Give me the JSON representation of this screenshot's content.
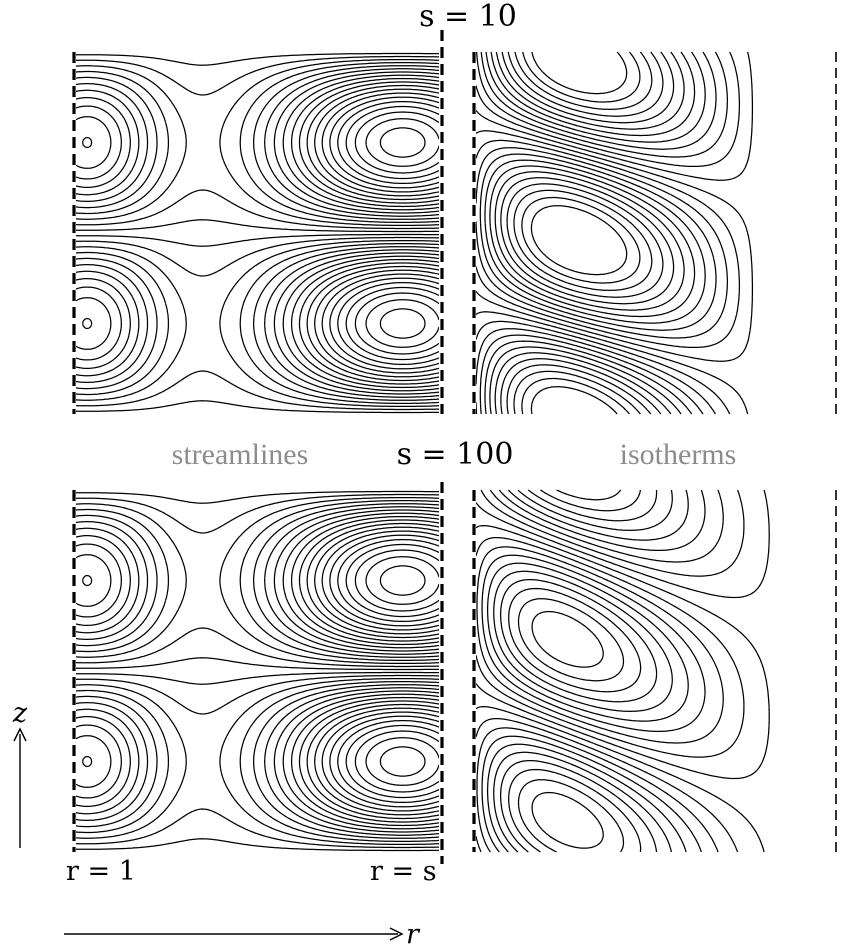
{
  "figure": {
    "top_title": "s = 10",
    "middle_title": "s = 100",
    "left_caption": "streamlines",
    "right_caption": "isotherms",
    "z_axis_label": "z",
    "r_axis_label": "r",
    "left_boundary_label": "r = 1",
    "right_boundary_label": "r = s"
  }
}
